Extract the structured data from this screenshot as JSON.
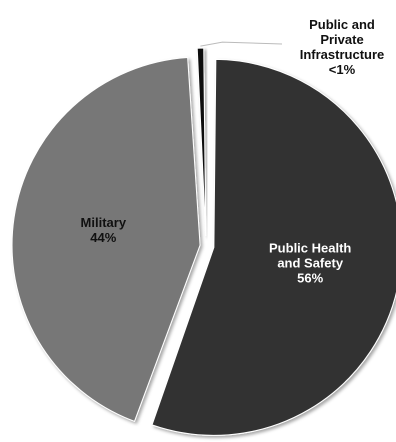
{
  "chart_data": {
    "type": "pie",
    "title": "",
    "categories": [
      "Public Health and Safety",
      "Military",
      "Public and Private Infrastructure"
    ],
    "values": [
      56,
      44,
      0.6
    ],
    "value_labels": [
      "56%",
      "44%",
      "<1%"
    ],
    "label_lines": [
      [
        "Public Health",
        "and Safety",
        "56%"
      ],
      [
        "Military",
        "44%"
      ],
      [
        "Public and",
        "Private",
        "Infrastructure",
        "<1%"
      ]
    ],
    "label_placement": [
      "inside",
      "inside",
      "outside-top-right"
    ],
    "colors": [
      "#333333",
      "#777777",
      "#111111"
    ],
    "label_colors": [
      "#ffffff",
      "#111111",
      "#111111"
    ],
    "exploded": true,
    "legend": "none",
    "grid": false
  }
}
